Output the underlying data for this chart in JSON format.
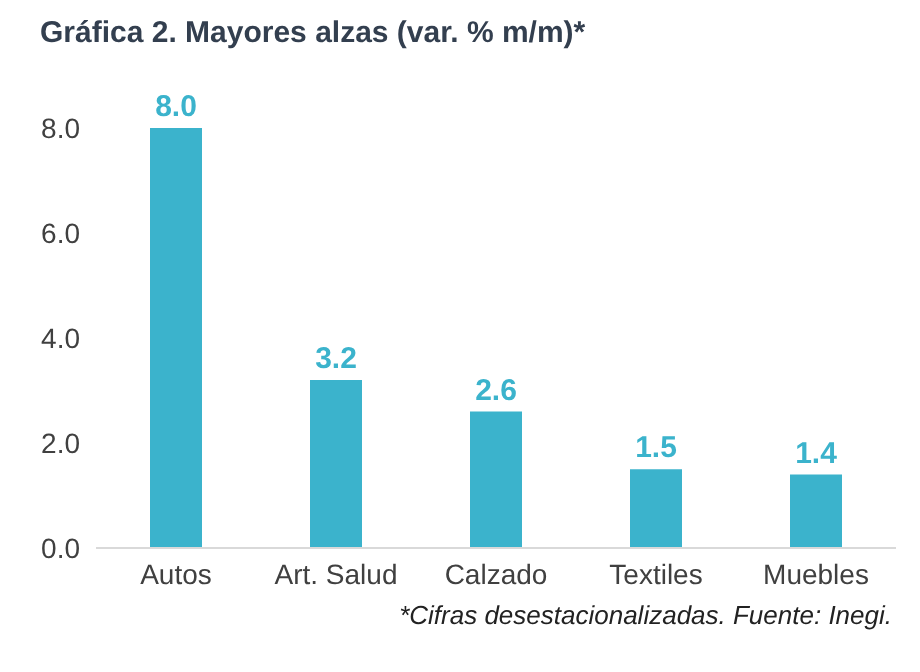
{
  "chart_data": {
    "type": "bar",
    "title": "Gráfica 2. Mayores alzas (var. % m/m)*",
    "categories": [
      "Autos",
      "Art. Salud",
      "Calzado",
      "Textiles",
      "Muebles"
    ],
    "values": [
      8.0,
      3.2,
      2.6,
      1.5,
      1.4
    ],
    "value_labels": [
      "8.0",
      "3.2",
      "2.6",
      "1.5",
      "1.4"
    ],
    "color": "#3bb3cc",
    "ylim": [
      0,
      8
    ],
    "yticks": [
      {
        "value": 0,
        "label": "0.0"
      },
      {
        "value": 2,
        "label": "2.0"
      },
      {
        "value": 4,
        "label": "4.0"
      },
      {
        "value": 6,
        "label": "6.0"
      },
      {
        "value": 8,
        "label": "8.0"
      }
    ],
    "annotations": [
      "*Cifras desestacionalizadas. Fuente: Inegi."
    ]
  }
}
